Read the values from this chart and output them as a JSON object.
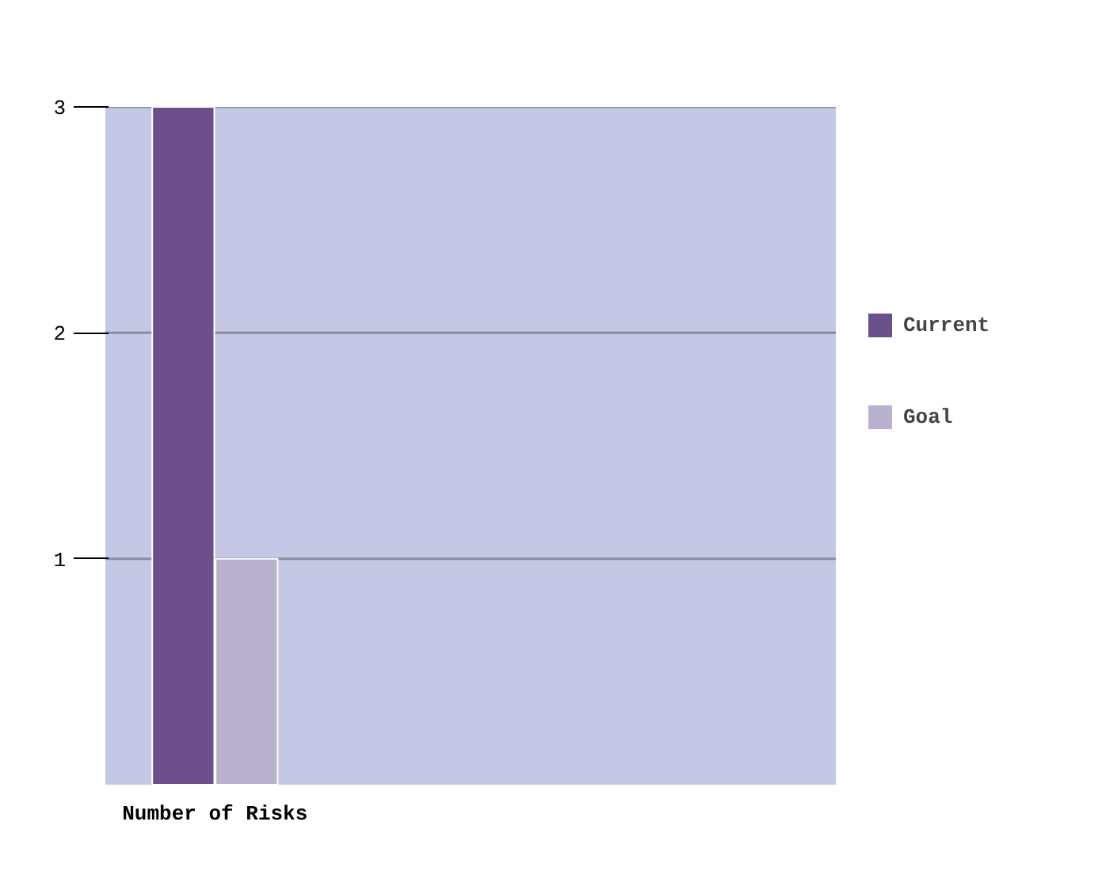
{
  "chart_data": {
    "type": "bar",
    "categories": [
      "Number of Risks"
    ],
    "series": [
      {
        "name": "Current",
        "color": "#6a4f8a",
        "values": [
          3
        ]
      },
      {
        "name": "Goal",
        "color": "#b9b1cd",
        "values": [
          1
        ]
      }
    ],
    "ylim": [
      0,
      3
    ],
    "yticks": [
      1,
      2,
      3
    ],
    "grid": "y",
    "legend": "right"
  }
}
